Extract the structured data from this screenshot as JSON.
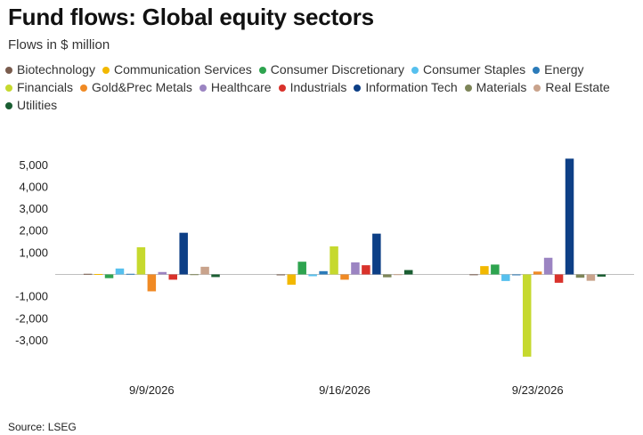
{
  "title": "Fund flows: Global equity sectors",
  "subtitle": "Flows in $ million",
  "source": "Source: LSEG",
  "chart_data": {
    "type": "bar",
    "title": "Fund flows: Global equity sectors",
    "subtitle": "Flows in $ million",
    "xlabel": "",
    "ylabel": "",
    "categories": [
      "9/9/2026",
      "9/16/2026",
      "9/23/2026"
    ],
    "yticks": [
      5000,
      4000,
      3000,
      2000,
      1000,
      -1000,
      -2000,
      -3000
    ],
    "ytick_labels": [
      "5,000",
      "4,000",
      "3,000",
      "2,000",
      "1,000",
      "-1,000",
      "-2,000",
      "-3,000"
    ],
    "ylim": [
      -3700,
      5400
    ],
    "grid": false,
    "legend_position": "top",
    "series": [
      {
        "name": "Biotechnology",
        "color": "#7a5c4e",
        "values": [
          30,
          -10,
          5
        ]
      },
      {
        "name": "Communication Services",
        "color": "#f2b800",
        "values": [
          20,
          -470,
          380
        ]
      },
      {
        "name": "Consumer Discretionary",
        "color": "#2ea44f",
        "values": [
          -170,
          580,
          450
        ]
      },
      {
        "name": "Consumer Staples",
        "color": "#56c0ee",
        "values": [
          270,
          -80,
          -300
        ]
      },
      {
        "name": "Energy",
        "color": "#2b7bb9",
        "values": [
          30,
          150,
          -20
        ]
      },
      {
        "name": "Financials",
        "color": "#c6d92e",
        "values": [
          1240,
          1280,
          -3750
        ]
      },
      {
        "name": "Gold&Prec Metals",
        "color": "#f08a24",
        "values": [
          -770,
          -240,
          130
        ]
      },
      {
        "name": "Healthcare",
        "color": "#9b84c2",
        "values": [
          110,
          550,
          760
        ]
      },
      {
        "name": "Industrials",
        "color": "#d9322b",
        "values": [
          -240,
          420,
          -380
        ]
      },
      {
        "name": "Information Tech",
        "color": "#0d3f86",
        "values": [
          1900,
          1860,
          5280
        ]
      },
      {
        "name": "Materials",
        "color": "#7d8558",
        "values": [
          10,
          -130,
          -150
        ]
      },
      {
        "name": "Real Estate",
        "color": "#c9a38c",
        "values": [
          350,
          10,
          -290
        ]
      },
      {
        "name": "Utilities",
        "color": "#1a5e32",
        "values": [
          -120,
          200,
          -100
        ]
      }
    ]
  }
}
